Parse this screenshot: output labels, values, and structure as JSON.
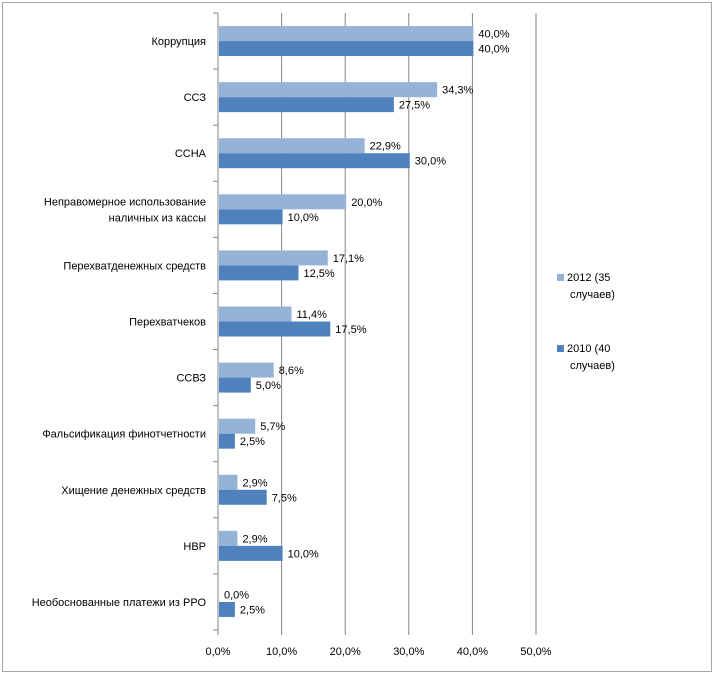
{
  "chart_data": {
    "type": "bar",
    "orientation": "horizontal",
    "categories": [
      [
        "Коррупция"
      ],
      [
        "ССЗ"
      ],
      [
        "ССНА"
      ],
      [
        "Неправомерное использование",
        "наличных из кассы"
      ],
      [
        "Перехватденежных средств"
      ],
      [
        "Перехватчеков"
      ],
      [
        "ССВЗ"
      ],
      [
        "Фальсификация финотчетности"
      ],
      [
        "Хищение денежных средств"
      ],
      [
        "НВР"
      ],
      [
        "Необоснованные платежи из РРО"
      ]
    ],
    "series": [
      {
        "name": "2012 (35 случаев)",
        "legend_lines": [
          "2012 (35",
          "случаев)"
        ],
        "color": "#95B3D7",
        "values": [
          40.0,
          34.3,
          22.9,
          20.0,
          17.1,
          11.4,
          8.6,
          5.7,
          2.9,
          2.9,
          0.0
        ],
        "labels": [
          "40,0%",
          "34,3%",
          "22,9%",
          "20,0%",
          "17,1%",
          "11,4%",
          "8,6%",
          "5,7%",
          "2,9%",
          "2,9%",
          "0,0%"
        ]
      },
      {
        "name": "2010 (40 случаев)",
        "legend_lines": [
          "2010 (40",
          "случаев)"
        ],
        "color": "#4F81BD",
        "values": [
          40.0,
          27.5,
          30.0,
          10.0,
          12.5,
          17.5,
          5.0,
          2.5,
          7.5,
          10.0,
          2.5
        ],
        "labels": [
          "40,0%",
          "27,5%",
          "30,0%",
          "10,0%",
          "12,5%",
          "17,5%",
          "5,0%",
          "2,5%",
          "7,5%",
          "10,0%",
          "2,5%"
        ]
      }
    ],
    "x_ticks": [
      "0,0%",
      "10,0%",
      "20,0%",
      "30,0%",
      "40,0%",
      "50,0%"
    ],
    "xlim": [
      0,
      50
    ],
    "grid": true,
    "legend_position": "right"
  }
}
